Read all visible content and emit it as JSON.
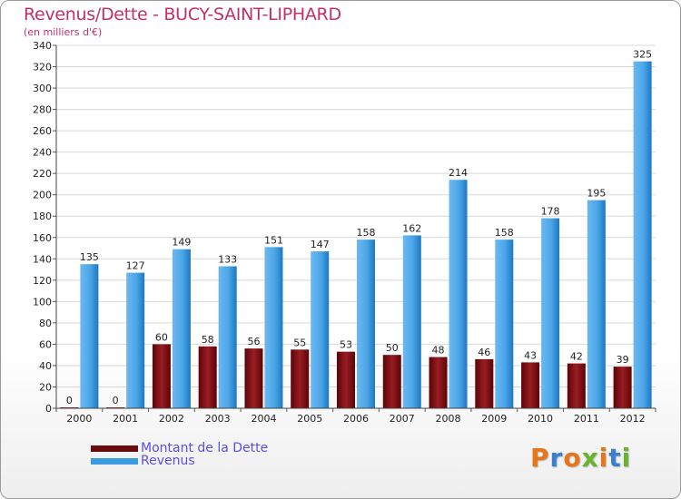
{
  "chart_data": {
    "type": "bar",
    "title": "Revenus/Dette - BUCY-SAINT-LIPHARD",
    "subtitle": "(en milliers d'€)",
    "categories": [
      "2000",
      "2001",
      "2002",
      "2003",
      "2004",
      "2005",
      "2006",
      "2007",
      "2008",
      "2009",
      "2010",
      "2011",
      "2012"
    ],
    "series": [
      {
        "name": "Montant de la Dette",
        "color": "#7a0e12",
        "values": [
          0,
          0,
          60,
          58,
          56,
          55,
          53,
          50,
          48,
          46,
          43,
          42,
          39
        ]
      },
      {
        "name": "Revenus",
        "color": "#3a9be0",
        "values": [
          135,
          127,
          149,
          133,
          151,
          147,
          158,
          162,
          214,
          158,
          178,
          195,
          325
        ]
      }
    ],
    "ylim": [
      0,
      340
    ],
    "yticks": [
      0,
      20,
      40,
      60,
      80,
      100,
      120,
      140,
      160,
      180,
      200,
      220,
      240,
      260,
      280,
      300,
      320,
      340
    ],
    "grid": true,
    "legend": "bottom-left"
  },
  "brand": {
    "logo_text": "Proxiti",
    "logo_colors": [
      "#e8751a",
      "#3a7fd0",
      "#e8751a",
      "#6ab42d",
      "#e8751a",
      "#3a7fd0",
      "#6ab42d"
    ]
  }
}
